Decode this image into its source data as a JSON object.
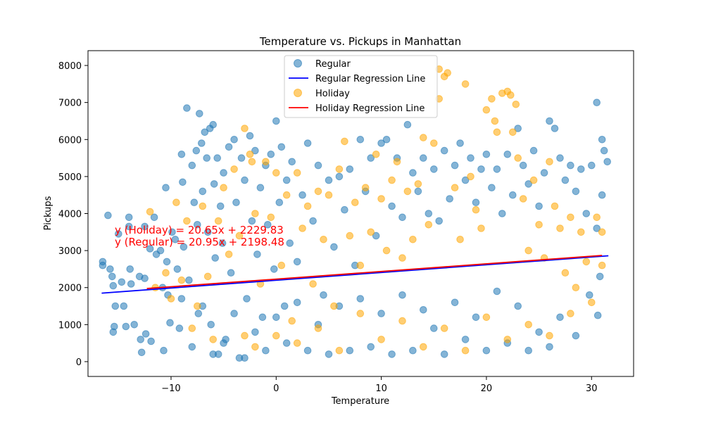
{
  "chart_data": {
    "type": "scatter",
    "title": "Temperature vs. Pickups in Manhattan",
    "xlabel": "Temperature",
    "ylabel": "Pickups",
    "xlim": [
      -17.9,
      34.0
    ],
    "ylim": [
      -400,
      8400
    ],
    "xticks": [
      -10,
      0,
      10,
      20,
      30
    ],
    "yticks": [
      0,
      1000,
      2000,
      3000,
      4000,
      5000,
      6000,
      7000,
      8000
    ],
    "grid": false,
    "legend_position": "top-center",
    "colors": {
      "regular": "#1f77b4",
      "holiday": "#ffa500",
      "regular_line": "#0000ff",
      "holiday_line": "#ff0000"
    },
    "series": [
      {
        "name": "Regular",
        "kind": "scatter",
        "color": "#1f77b4",
        "points": [
          [
            -16.5,
            2700
          ],
          [
            -16.5,
            2600
          ],
          [
            -16.0,
            3950
          ],
          [
            -15.8,
            2500
          ],
          [
            -15.6,
            2300
          ],
          [
            -15.5,
            2050
          ],
          [
            -15.5,
            800
          ],
          [
            -15.4,
            950
          ],
          [
            -15.3,
            1500
          ],
          [
            -15.0,
            3450
          ],
          [
            -14.7,
            2150
          ],
          [
            -14.5,
            1500
          ],
          [
            -14.3,
            950
          ],
          [
            -14.0,
            3900
          ],
          [
            -14.0,
            3650
          ],
          [
            -13.9,
            2500
          ],
          [
            -13.8,
            2100
          ],
          [
            -13.5,
            1000
          ],
          [
            -13.0,
            2300
          ],
          [
            -12.9,
            600
          ],
          [
            -12.8,
            250
          ],
          [
            -12.5,
            3650
          ],
          [
            -12.5,
            2250
          ],
          [
            -12.4,
            750
          ],
          [
            -12.0,
            3050
          ],
          [
            -11.9,
            550
          ],
          [
            -11.6,
            3900
          ],
          [
            -11.4,
            2900
          ],
          [
            -11.0,
            3000
          ],
          [
            -10.8,
            2000
          ],
          [
            -10.7,
            300
          ],
          [
            -10.5,
            4700
          ],
          [
            -10.4,
            2700
          ],
          [
            -10.3,
            1800
          ],
          [
            -10.1,
            1050
          ],
          [
            -9.9,
            3500
          ],
          [
            -9.6,
            3300
          ],
          [
            -9.4,
            2500
          ],
          [
            -9.2,
            900
          ],
          [
            -9.0,
            5600
          ],
          [
            -8.9,
            4850
          ],
          [
            -8.8,
            3100
          ],
          [
            -8.5,
            6850
          ],
          [
            -8.3,
            2200
          ],
          [
            -8.0,
            5300
          ],
          [
            -7.8,
            4300
          ],
          [
            -7.6,
            5700
          ],
          [
            -7.5,
            3700
          ],
          [
            -7.4,
            1300
          ],
          [
            -7.3,
            6700
          ],
          [
            -7.1,
            5900
          ],
          [
            -7.0,
            4600
          ],
          [
            -6.8,
            6200
          ],
          [
            -6.6,
            5500
          ],
          [
            -6.5,
            3500
          ],
          [
            -6.3,
            6300
          ],
          [
            -6.2,
            1000
          ],
          [
            -6.0,
            6400
          ],
          [
            -5.9,
            4800
          ],
          [
            -5.8,
            2800
          ],
          [
            -5.6,
            5500
          ],
          [
            -5.5,
            200
          ],
          [
            -5.3,
            4200
          ],
          [
            -5.1,
            3200
          ],
          [
            -5.0,
            5100
          ],
          [
            -4.8,
            600
          ],
          [
            -4.5,
            5800
          ],
          [
            -4.3,
            2400
          ],
          [
            -4.0,
            6000
          ],
          [
            -3.8,
            4300
          ],
          [
            -3.5,
            100
          ],
          [
            -3.3,
            5500
          ],
          [
            -3.0,
            4900
          ],
          [
            -2.8,
            1700
          ],
          [
            -2.5,
            6100
          ],
          [
            -2.3,
            3800
          ],
          [
            -2.0,
            5700
          ],
          [
            -1.8,
            2900
          ],
          [
            -1.5,
            4700
          ],
          [
            -1.3,
            1200
          ],
          [
            -1.0,
            5300
          ],
          [
            -0.8,
            3700
          ],
          [
            -0.5,
            5600
          ],
          [
            -0.2,
            2500
          ],
          [
            0.0,
            6500
          ],
          [
            0.3,
            4300
          ],
          [
            0.5,
            5800
          ],
          [
            0.8,
            1500
          ],
          [
            1.0,
            4900
          ],
          [
            1.3,
            3200
          ],
          [
            1.5,
            5400
          ],
          [
            2.0,
            2700
          ],
          [
            2.5,
            4500
          ],
          [
            3.0,
            5900
          ],
          [
            3.5,
            3800
          ],
          [
            4.0,
            5300
          ],
          [
            4.5,
            1800
          ],
          [
            5.0,
            4900
          ],
          [
            5.5,
            3100
          ],
          [
            6.0,
            5000
          ],
          [
            6.5,
            4100
          ],
          [
            7.0,
            5200
          ],
          [
            7.5,
            2600
          ],
          [
            8.0,
            6000
          ],
          [
            8.5,
            4600
          ],
          [
            9.0,
            5500
          ],
          [
            9.5,
            3400
          ],
          [
            10.0,
            5900
          ],
          [
            10.5,
            6000
          ],
          [
            11.0,
            4200
          ],
          [
            11.5,
            5500
          ],
          [
            12.0,
            3900
          ],
          [
            12.5,
            6400
          ],
          [
            13.0,
            5100
          ],
          [
            13.5,
            4600
          ],
          [
            14.0,
            5500
          ],
          [
            14.5,
            4000
          ],
          [
            15.0,
            5200
          ],
          [
            15.5,
            3800
          ],
          [
            16.0,
            5700
          ],
          [
            16.5,
            4400
          ],
          [
            17.0,
            5300
          ],
          [
            17.5,
            5900
          ],
          [
            18.0,
            4900
          ],
          [
            18.5,
            5500
          ],
          [
            19.0,
            4300
          ],
          [
            19.5,
            5200
          ],
          [
            20.0,
            5600
          ],
          [
            20.5,
            4700
          ],
          [
            21.0,
            5200
          ],
          [
            21.5,
            4000
          ],
          [
            22.0,
            5600
          ],
          [
            22.5,
            4500
          ],
          [
            23.0,
            6300
          ],
          [
            23.5,
            5300
          ],
          [
            24.0,
            4800
          ],
          [
            24.5,
            5700
          ],
          [
            25.0,
            4200
          ],
          [
            25.5,
            5100
          ],
          [
            26.0,
            6500
          ],
          [
            26.5,
            6300
          ],
          [
            27.0,
            5500
          ],
          [
            27.5,
            4900
          ],
          [
            28.0,
            5300
          ],
          [
            28.5,
            4600
          ],
          [
            29.0,
            5200
          ],
          [
            29.5,
            4000
          ],
          [
            30.0,
            5300
          ],
          [
            30.5,
            7000
          ],
          [
            31.0,
            6000
          ],
          [
            31.0,
            4500
          ],
          [
            31.2,
            5700
          ],
          [
            31.5,
            5400
          ],
          [
            30.5,
            3600
          ],
          [
            30.8,
            2300
          ],
          [
            30.6,
            1250
          ],
          [
            29.8,
            1800
          ],
          [
            28.5,
            700
          ],
          [
            27.0,
            1200
          ],
          [
            26.0,
            400
          ],
          [
            25.0,
            800
          ],
          [
            24.0,
            300
          ],
          [
            23.0,
            1500
          ],
          [
            22.0,
            500
          ],
          [
            21.0,
            1900
          ],
          [
            20.0,
            300
          ],
          [
            19.0,
            1200
          ],
          [
            18.0,
            600
          ],
          [
            17.0,
            1600
          ],
          [
            16.0,
            200
          ],
          [
            15.0,
            900
          ],
          [
            14.0,
            1400
          ],
          [
            13.0,
            300
          ],
          [
            12.0,
            1800
          ],
          [
            11.0,
            200
          ],
          [
            10.0,
            1300
          ],
          [
            9.0,
            400
          ],
          [
            8.0,
            1700
          ],
          [
            7.0,
            300
          ],
          [
            6.0,
            1500
          ],
          [
            5.0,
            200
          ],
          [
            4.0,
            1000
          ],
          [
            3.0,
            300
          ],
          [
            2.0,
            1600
          ],
          [
            1.0,
            500
          ],
          [
            0.0,
            1200
          ],
          [
            -1.0,
            300
          ],
          [
            -2.0,
            800
          ],
          [
            -3.0,
            100
          ],
          [
            -4.0,
            1300
          ],
          [
            -5.0,
            500
          ],
          [
            -6.0,
            200
          ],
          [
            -7.0,
            1500
          ],
          [
            -8.0,
            400
          ],
          [
            -9.0,
            1700
          ]
        ]
      },
      {
        "name": "Regular Regression Line",
        "kind": "line",
        "color": "#0000ff",
        "slope": 20.95,
        "intercept": 2198.48,
        "x_range": [
          -16.6,
          31.6
        ]
      },
      {
        "name": "Holiday",
        "kind": "scatter",
        "color": "#ffa500",
        "points": [
          [
            -12.0,
            4050
          ],
          [
            -11.5,
            2000
          ],
          [
            -10.5,
            2400
          ],
          [
            -10.0,
            1700
          ],
          [
            -9.5,
            4300
          ],
          [
            -9.0,
            2200
          ],
          [
            -8.5,
            3800
          ],
          [
            -8.0,
            900
          ],
          [
            -7.5,
            1500
          ],
          [
            -7.0,
            4200
          ],
          [
            -6.5,
            2300
          ],
          [
            -6.0,
            600
          ],
          [
            -5.5,
            3800
          ],
          [
            -5.0,
            4700
          ],
          [
            -4.5,
            2900
          ],
          [
            -4.0,
            5200
          ],
          [
            -3.5,
            3400
          ],
          [
            -3.0,
            6300
          ],
          [
            -2.5,
            5600
          ],
          [
            -2.3,
            5400
          ],
          [
            -2.0,
            4000
          ],
          [
            -1.5,
            2100
          ],
          [
            -1.0,
            5400
          ],
          [
            -0.5,
            3900
          ],
          [
            0.0,
            5100
          ],
          [
            0.5,
            2600
          ],
          [
            1.0,
            4500
          ],
          [
            1.5,
            1100
          ],
          [
            2.0,
            5100
          ],
          [
            2.5,
            3600
          ],
          [
            3.0,
            4200
          ],
          [
            3.5,
            2100
          ],
          [
            4.0,
            4600
          ],
          [
            4.5,
            3300
          ],
          [
            5.0,
            4500
          ],
          [
            5.5,
            1500
          ],
          [
            6.0,
            5200
          ],
          [
            6.5,
            5950
          ],
          [
            7.0,
            3400
          ],
          [
            7.5,
            4300
          ],
          [
            8.0,
            2600
          ],
          [
            8.5,
            4700
          ],
          [
            9.0,
            3500
          ],
          [
            9.5,
            5600
          ],
          [
            10.0,
            4400
          ],
          [
            10.5,
            3000
          ],
          [
            11.0,
            4900
          ],
          [
            11.5,
            5400
          ],
          [
            12.0,
            2800
          ],
          [
            12.5,
            4600
          ],
          [
            13.0,
            3300
          ],
          [
            13.5,
            4800
          ],
          [
            14.0,
            6050
          ],
          [
            14.5,
            3700
          ],
          [
            15.0,
            5900
          ],
          [
            15.5,
            7100
          ],
          [
            15.5,
            7900
          ],
          [
            16.0,
            7700
          ],
          [
            16.3,
            7800
          ],
          [
            17.0,
            4700
          ],
          [
            17.5,
            3300
          ],
          [
            18.0,
            7500
          ],
          [
            18.5,
            5000
          ],
          [
            19.0,
            4100
          ],
          [
            19.5,
            3600
          ],
          [
            20.0,
            6800
          ],
          [
            20.5,
            7100
          ],
          [
            20.8,
            6500
          ],
          [
            21.0,
            6200
          ],
          [
            21.5,
            7250
          ],
          [
            22.0,
            7300
          ],
          [
            22.3,
            7200
          ],
          [
            22.5,
            6200
          ],
          [
            22.8,
            6950
          ],
          [
            23.0,
            5500
          ],
          [
            23.5,
            4400
          ],
          [
            24.0,
            3000
          ],
          [
            24.5,
            4900
          ],
          [
            25.0,
            3700
          ],
          [
            25.5,
            2800
          ],
          [
            26.0,
            5400
          ],
          [
            26.5,
            4200
          ],
          [
            27.0,
            3600
          ],
          [
            27.5,
            2400
          ],
          [
            28.0,
            3900
          ],
          [
            28.5,
            2000
          ],
          [
            29.0,
            3500
          ],
          [
            29.5,
            2700
          ],
          [
            30.0,
            1600
          ],
          [
            30.5,
            3900
          ],
          [
            31.0,
            2600
          ],
          [
            31.0,
            3500
          ],
          [
            -3.0,
            700
          ],
          [
            -2.0,
            400
          ],
          [
            0.0,
            700
          ],
          [
            2.0,
            500
          ],
          [
            4.0,
            900
          ],
          [
            6.0,
            300
          ],
          [
            8.0,
            1300
          ],
          [
            10.0,
            600
          ],
          [
            12.0,
            1100
          ],
          [
            14.0,
            400
          ],
          [
            16.0,
            900
          ],
          [
            18.0,
            300
          ],
          [
            20.0,
            1200
          ],
          [
            22.0,
            600
          ],
          [
            24.0,
            1000
          ],
          [
            26.0,
            700
          ],
          [
            28.0,
            1300
          ]
        ]
      },
      {
        "name": "Holiday Regression Line",
        "kind": "line",
        "color": "#ff0000",
        "slope": 20.65,
        "intercept": 2229.83,
        "x_range": [
          -12.3,
          31.0
        ]
      }
    ],
    "annotations": [
      "y (Holiday) = 20.65x + 2229.83",
      "y (Regular) = 20.95x + 2198.48"
    ]
  }
}
